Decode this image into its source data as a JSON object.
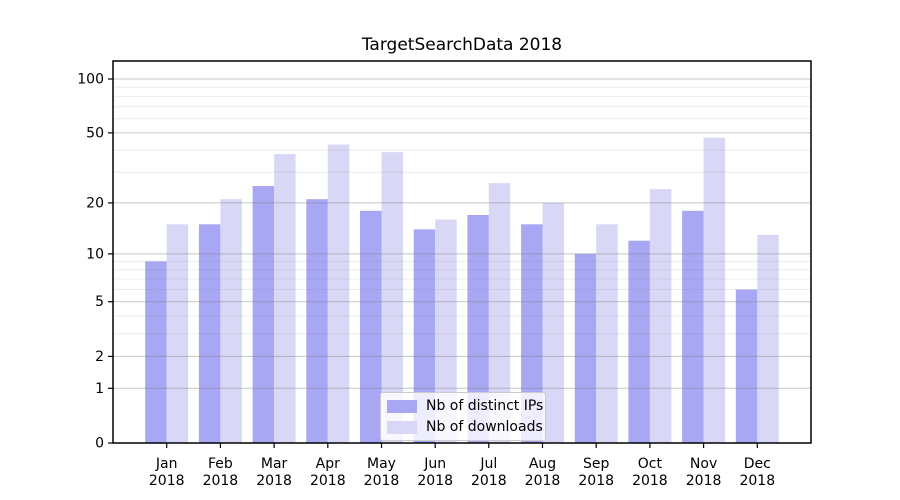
{
  "figure": {
    "background": "#ffffff"
  },
  "chart_data": {
    "type": "bar",
    "title": "TargetSearchData 2018",
    "categories": [
      "Jan",
      "Feb",
      "Mar",
      "Apr",
      "May",
      "Jun",
      "Jul",
      "Aug",
      "Sep",
      "Oct",
      "Nov",
      "Dec"
    ],
    "x_sublabel": "2018",
    "series": [
      {
        "name": "Nb of distinct IPs",
        "color": "#a7a7f3",
        "values": [
          9,
          15,
          25,
          21,
          18,
          14,
          17,
          15,
          10,
          12,
          18,
          6
        ]
      },
      {
        "name": "Nb of downloads",
        "color": "#d8d8f6",
        "values": [
          15,
          21,
          38,
          43,
          39,
          16,
          26,
          20,
          15,
          24,
          47,
          13
        ]
      }
    ],
    "yscale": "log1p",
    "ylim": [
      0,
      100
    ],
    "yticks": [
      0,
      1,
      2,
      5,
      10,
      20,
      50,
      100
    ],
    "yminorticks": [
      3,
      4,
      6,
      7,
      8,
      9,
      30,
      40,
      60,
      70,
      80,
      90
    ],
    "grid": true,
    "legend_position": "lower center",
    "colors": {
      "grid_major": "#c6c6c6",
      "grid_minor": "#ececec",
      "axis": "#000000",
      "text": "#000000"
    }
  }
}
